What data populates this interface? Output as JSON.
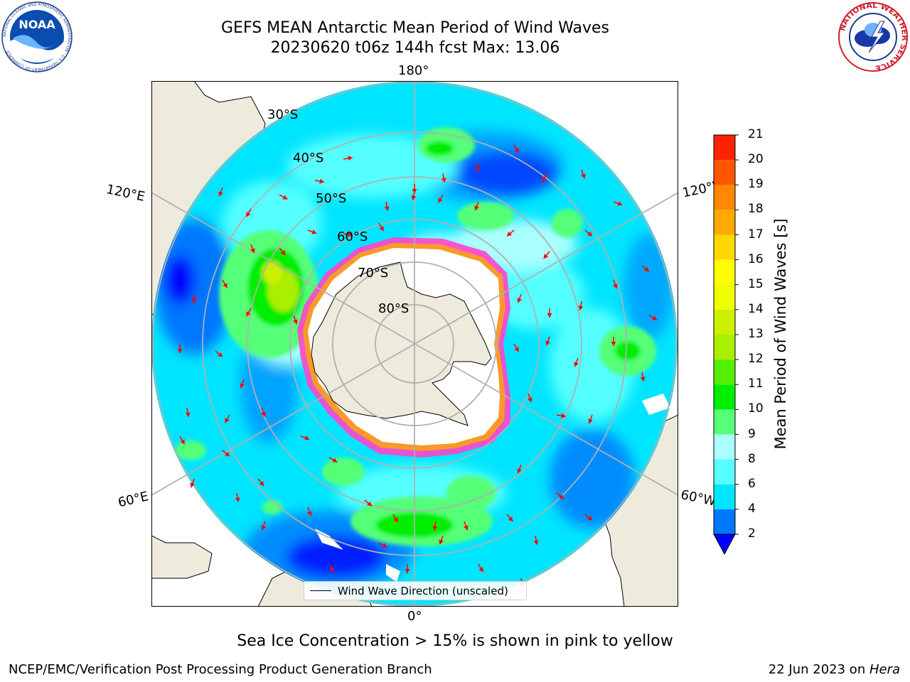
{
  "header": {
    "title_line1": "GEFS MEAN Antarctic Mean Period of Wind Waves",
    "title_line2": "20230620 t06z 144h fcst   Max: 13.06"
  },
  "logos": {
    "noaa": {
      "text": "NOAA",
      "ring_text": "NATIONAL OCEANIC AND ATMOSPHERIC ADMINISTRATION · U.S. DEPARTMENT OF COMMERCE"
    },
    "nws": {
      "ring_text": "NATIONAL WEATHER SERVICE"
    }
  },
  "map": {
    "lon_labels": {
      "top": "180°",
      "bottom": "0°",
      "left_upper": "120°E",
      "left_lower": "60°E",
      "right_upper": "120°W",
      "right_lower": "60°W"
    },
    "lat_labels": [
      "30°S",
      "40°S",
      "50°S",
      "60°S",
      "70°S",
      "80°S"
    ],
    "legend": "Wind Wave Direction (unscaled)"
  },
  "colorbar": {
    "label": "Mean Period of Wind Waves [s]",
    "ticks": [
      "2",
      "4",
      "6",
      "8",
      "9",
      "10",
      "11",
      "12",
      "13",
      "14",
      "15",
      "16",
      "17",
      "18",
      "19",
      "20",
      "21"
    ],
    "colors": [
      "#0077ff",
      "#00e5ff",
      "#55ffff",
      "#aaffff",
      "#55ff77",
      "#00ee00",
      "#55ee00",
      "#aaee00",
      "#ccf000",
      "#eeff00",
      "#ffff00",
      "#ffd700",
      "#ffaa00",
      "#ff8800",
      "#ff5500",
      "#ff2200"
    ],
    "under_color": "#0000ff"
  },
  "notes": {
    "sea_ice": "Sea Ice Concentration > 15% is shown in pink to yellow",
    "footer_left": "NCEP/EMC/Verification Post Processing Product Generation Branch",
    "footer_date": "22 Jun 2023 on ",
    "footer_host": "Hera"
  },
  "colors": {
    "land": "#efebdc",
    "ocean_base": "#00e5ff",
    "ice_edge": "#ff44cc",
    "arrow": "#ff0000",
    "grid": "#b0b0b0"
  }
}
